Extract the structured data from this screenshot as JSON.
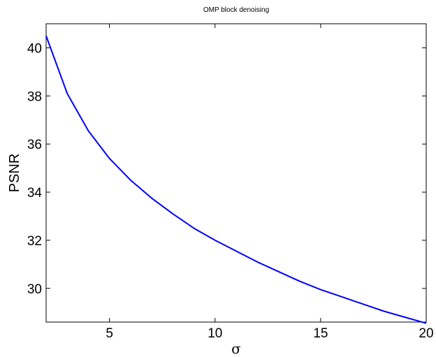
{
  "chart_data": {
    "type": "line",
    "title": "OMP block denoising",
    "xlabel": "σ",
    "ylabel": "PSNR",
    "xlim": [
      2,
      20
    ],
    "ylim": [
      28.6,
      41
    ],
    "xticks": [
      5,
      10,
      15,
      20
    ],
    "yticks": [
      30,
      32,
      34,
      36,
      38,
      40
    ],
    "grid": false,
    "series": [
      {
        "color": "#0000ff",
        "x": [
          2,
          3,
          4,
          5,
          6,
          7,
          8,
          9,
          10,
          11,
          12,
          13,
          14,
          15,
          16,
          17,
          18,
          19,
          20
        ],
        "y": [
          40.5,
          38.1,
          36.55,
          35.4,
          34.5,
          33.75,
          33.1,
          32.5,
          32.0,
          31.55,
          31.1,
          30.7,
          30.3,
          29.95,
          29.65,
          29.35,
          29.05,
          28.8,
          28.55
        ]
      }
    ]
  }
}
